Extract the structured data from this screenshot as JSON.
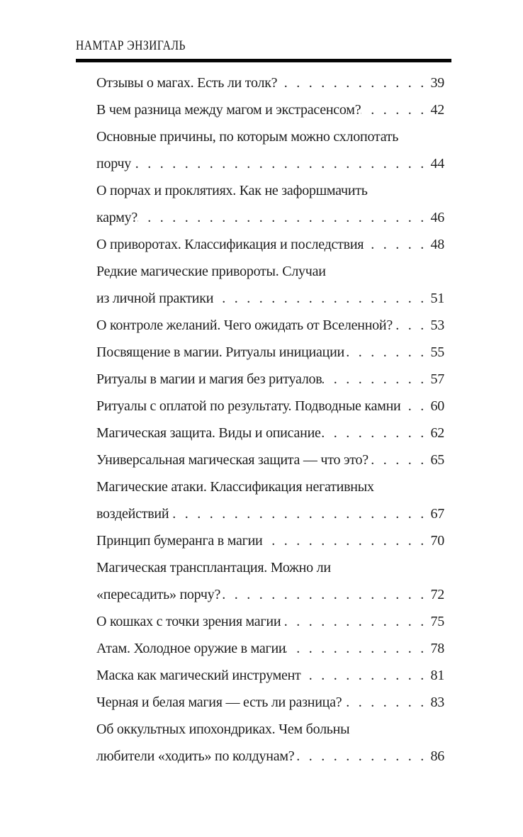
{
  "page": {
    "header": "НАМТАР ЭНЗИГАЛЬ",
    "background_color": "#ffffff",
    "text_color": "#1e1e1e",
    "rule_color": "#050505"
  },
  "toc": {
    "lines": [
      {
        "text": "Отзывы о магах. Есть ли толк?",
        "page": "39"
      },
      {
        "text": "В чем разница между магом и экстрасенсом?",
        "page": "42"
      },
      {
        "text": "Основные причины, по которым можно схлопотать",
        "page": null
      },
      {
        "text": "порчу",
        "page": "44"
      },
      {
        "text": "О порчах и проклятиях. Как не зафоршмачить",
        "page": null
      },
      {
        "text": "карму?",
        "page": "46"
      },
      {
        "text": "О приворотах. Классификация и последствия",
        "page": "48"
      },
      {
        "text": "Редкие магические привороты. Случаи",
        "page": null
      },
      {
        "text": "из личной практики",
        "page": "51"
      },
      {
        "text": "О контроле желаний. Чего ожидать от Вселенной?",
        "page": "53"
      },
      {
        "text": "Посвящение в магии. Ритуалы инициации",
        "page": "55"
      },
      {
        "text": "Ритуалы в магии и магия без ритуалов",
        "page": "57"
      },
      {
        "text": "Ритуалы с оплатой по результату. Подводные камни",
        "page": "60"
      },
      {
        "text": "Магическая защита. Виды и описание",
        "page": "62"
      },
      {
        "text": "Универсальная магическая защита — что это?",
        "page": "65"
      },
      {
        "text": "Магические атаки. Классификация негативных",
        "page": null
      },
      {
        "text": "воздействий",
        "page": "67"
      },
      {
        "text": "Принцип бумеранга в магии",
        "page": "70"
      },
      {
        "text": "Магическая трансплантация. Можно ли",
        "page": null
      },
      {
        "text": "«пересадить» порчу?",
        "page": "72"
      },
      {
        "text": "О кошках с точки зрения магии",
        "page": "75"
      },
      {
        "text": "Атам. Холодное оружие в магии",
        "page": "78"
      },
      {
        "text": "Маска как магический инструмент",
        "page": "81"
      },
      {
        "text": "Черная и белая магия — есть ли разница?",
        "page": "83"
      },
      {
        "text": "Об оккультных ипохондриках. Чем больны",
        "page": null
      },
      {
        "text": "любители «ходить» по колдунам?",
        "page": "86"
      }
    ]
  }
}
